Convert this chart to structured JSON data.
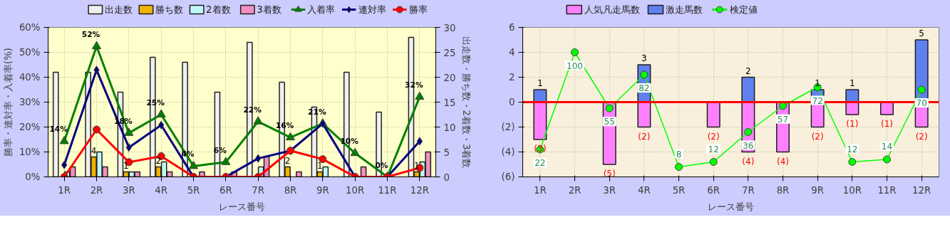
{
  "chart_data": [
    {
      "type": "bar",
      "xlabel": "レース番号",
      "ylabel": "勝率・連対率・入着率(%)",
      "y2label": "出走数・勝ち数・2着数・3着数",
      "categories": [
        "1R",
        "2R",
        "3R",
        "4R",
        "5R",
        "6R",
        "7R",
        "8R",
        "9R",
        "10R",
        "11R",
        "12R"
      ],
      "series": [
        {
          "name": "出走数",
          "axis": "y2",
          "color": "#f0f0f0",
          "values": [
            21,
            21,
            17,
            24,
            23,
            17,
            27,
            19,
            14,
            21,
            13,
            28
          ]
        },
        {
          "name": "勝ち数",
          "axis": "y2",
          "color": "#f0b400",
          "values": [
            0,
            4,
            1,
            2,
            0,
            0,
            0,
            2,
            1,
            0,
            0,
            1
          ],
          "value_labels": [
            null,
            "4",
            "1",
            "2",
            null,
            null,
            null,
            "2",
            "1",
            null,
            null,
            "1"
          ]
        },
        {
          "name": "2着数",
          "axis": "y2",
          "color": "#c0f8f8",
          "values": [
            1,
            5,
            1,
            3,
            0,
            0,
            2,
            0,
            2,
            0,
            0,
            3
          ]
        },
        {
          "name": "3着数",
          "axis": "y2",
          "color": "#f090c0",
          "values": [
            2,
            2,
            1,
            1,
            1,
            1,
            4,
            1,
            0,
            2,
            0,
            5
          ]
        },
        {
          "name": "入着率",
          "type": "line",
          "color": "#008000",
          "marker": "triangle",
          "values": [
            14.3,
            52.4,
            17.6,
            25.0,
            4.3,
            5.9,
            22.2,
            15.8,
            21.4,
            9.5,
            0,
            32.1
          ],
          "value_labels": [
            "14%",
            "52%",
            "18%",
            "25%",
            "4%",
            "6%",
            "22%",
            "16%",
            "21%",
            "10%",
            "0%",
            "32%"
          ]
        },
        {
          "name": "連対率",
          "type": "line",
          "color": "#000080",
          "marker": "diamond",
          "values": [
            4.8,
            42.9,
            11.8,
            20.8,
            0,
            0,
            7.4,
            10.5,
            21.4,
            0,
            0,
            14.3
          ]
        },
        {
          "name": "勝率",
          "type": "line",
          "color": "#ff0000",
          "marker": "circle",
          "values": [
            0,
            19.0,
            5.9,
            8.3,
            0,
            0,
            0,
            10.5,
            7.1,
            0,
            0,
            3.6
          ]
        }
      ],
      "ylim": [
        0,
        60
      ],
      "yticks": [
        {
          "value": 0,
          "label": "0%"
        },
        {
          "value": 10,
          "label": "10%"
        },
        {
          "value": 20,
          "label": "20%"
        },
        {
          "value": 30,
          "label": "30%"
        },
        {
          "value": 40,
          "label": "40%"
        },
        {
          "value": 50,
          "label": "50%"
        },
        {
          "value": 60,
          "label": "60%"
        }
      ],
      "y2lim": [
        0,
        30
      ],
      "y2ticks": [
        0,
        5,
        10,
        15,
        20,
        25,
        30
      ],
      "grid": true,
      "legend": "top"
    },
    {
      "type": "bar",
      "xlabel": "レース番号",
      "stacked": true,
      "categories": [
        "1R",
        "2R",
        "3R",
        "4R",
        "5R",
        "6R",
        "7R",
        "8R",
        "9R",
        "10R",
        "11R",
        "12R"
      ],
      "series": [
        {
          "name": "人気凡走馬数",
          "color": "#ff80ff",
          "values": [
            -3,
            null,
            -5,
            -2,
            null,
            -2,
            -4,
            -4,
            -2,
            -1,
            -1,
            -2
          ],
          "value_labels": [
            "(3)",
            null,
            "(5)",
            "(2)",
            null,
            "(2)",
            "(4)",
            "(4)",
            "(2)",
            "(1)",
            "(1)",
            "(2)"
          ]
        },
        {
          "name": "激走馬数",
          "color": "#6080f0",
          "values": [
            1,
            null,
            null,
            3,
            null,
            null,
            2,
            null,
            1,
            1,
            null,
            5
          ],
          "value_labels": [
            "1",
            null,
            null,
            "3",
            null,
            null,
            "2",
            null,
            "1",
            "1",
            null,
            "5"
          ]
        },
        {
          "name": "検定値",
          "type": "line",
          "axis": "y2",
          "color": "#00ff00",
          "marker": "circle",
          "values": [
            22,
            100,
            55,
            82,
            8,
            12,
            36,
            57,
            72,
            12,
            14,
            70
          ],
          "data_labels": true
        }
      ],
      "ylim": [
        -6,
        6
      ],
      "yticks": [
        {
          "value": -6,
          "label": "(6)"
        },
        {
          "value": -4,
          "label": "(4)"
        },
        {
          "value": -2,
          "label": "(2)"
        },
        0,
        2,
        4,
        6
      ],
      "y2lim": [
        0,
        120
      ],
      "ref_lines": [
        {
          "axis": "y",
          "value": 0,
          "color": "#ff0000"
        }
      ],
      "grid": true,
      "legend": "top"
    }
  ]
}
